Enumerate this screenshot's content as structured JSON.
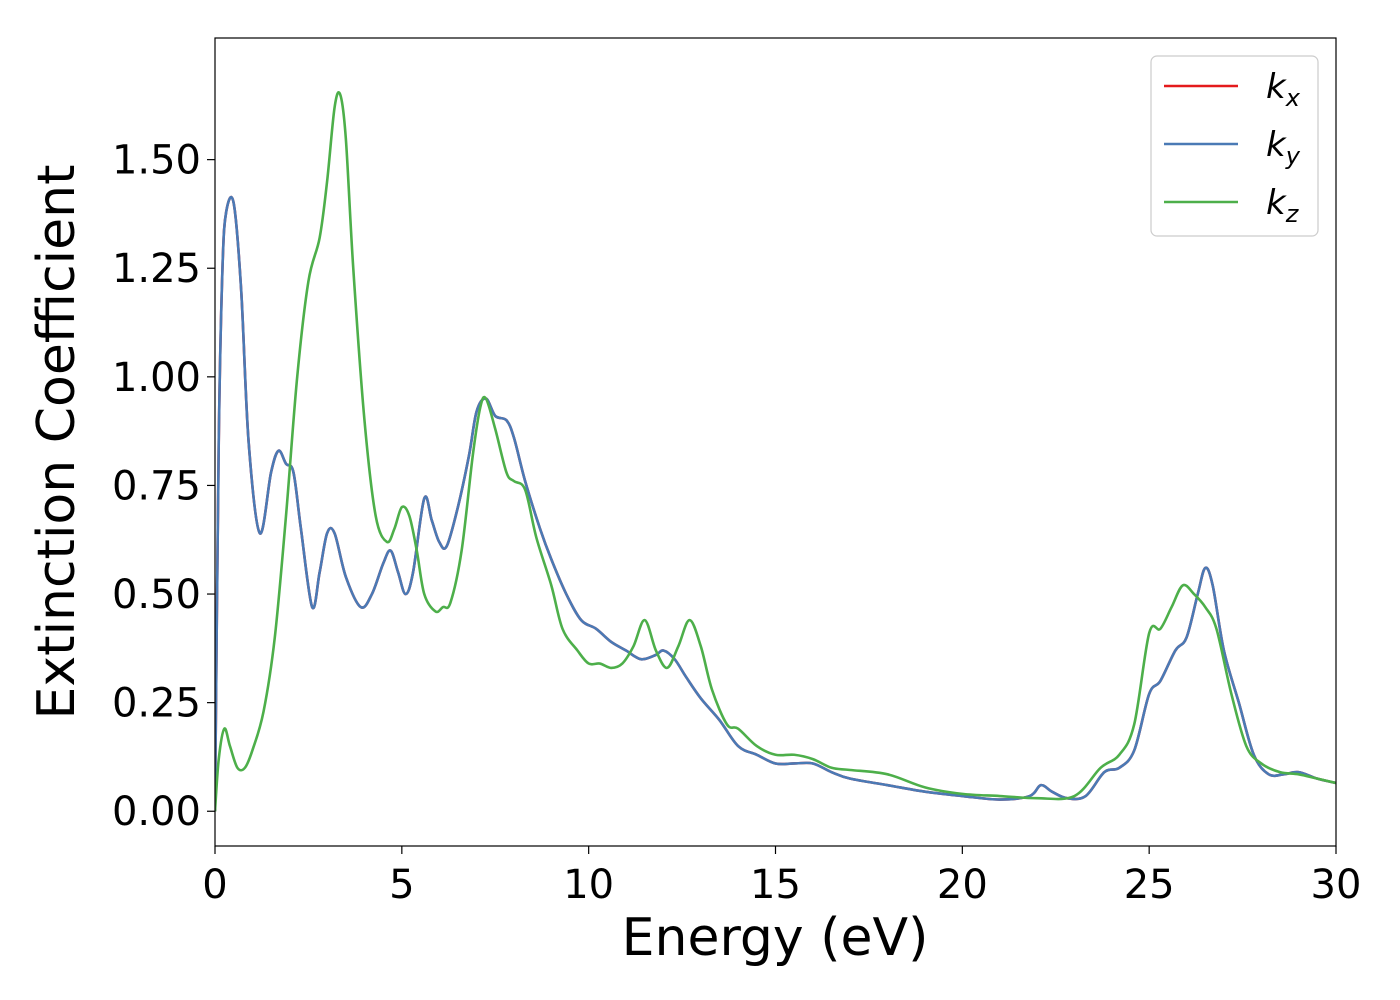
{
  "chart_data": {
    "type": "line",
    "xlabel": "Energy (eV)",
    "ylabel": "Extinction Coefficient",
    "xlim": [
      0,
      30
    ],
    "ylim": [
      -0.08,
      1.78
    ],
    "xticks": [
      0,
      5,
      10,
      15,
      20,
      25,
      30
    ],
    "xtick_labels": [
      "0",
      "5",
      "10",
      "15",
      "20",
      "25",
      "30"
    ],
    "yticks": [
      0.0,
      0.25,
      0.5,
      0.75,
      1.0,
      1.25,
      1.5
    ],
    "ytick_labels": [
      "0.00",
      "0.25",
      "0.50",
      "0.75",
      "1.00",
      "1.25",
      "1.50"
    ],
    "grid": false,
    "legend_position": "top-right",
    "series": [
      {
        "name": "k_x",
        "label_main": "k",
        "label_sub": "x",
        "color": "#e41a1c",
        "x": [
          0,
          0.1,
          0.2,
          0.3,
          0.5,
          0.7,
          0.9,
          1.2,
          1.5,
          1.7,
          1.9,
          2.1,
          2.3,
          2.6,
          2.8,
          3.0,
          3.2,
          3.5,
          3.9,
          4.2,
          4.5,
          4.7,
          4.9,
          5.1,
          5.3,
          5.6,
          5.8,
          6.0,
          6.2,
          6.5,
          6.8,
          7.0,
          7.25,
          7.5,
          7.8,
          8.0,
          8.3,
          8.7,
          9.0,
          9.4,
          9.8,
          10.2,
          10.6,
          11.0,
          11.4,
          11.8,
          12.0,
          12.3,
          12.6,
          13.0,
          13.5,
          14.0,
          14.5,
          15.0,
          15.5,
          16.0,
          16.5,
          17.0,
          18.0,
          19.0,
          20.0,
          21.0,
          21.8,
          22.1,
          22.4,
          22.8,
          23.3,
          23.8,
          24.2,
          24.6,
          25.0,
          25.3,
          25.7,
          26.0,
          26.3,
          26.5,
          26.7,
          27.0,
          27.4,
          27.8,
          28.2,
          28.6,
          29.0,
          29.5,
          30.0
        ],
        "y": [
          0.0,
          0.85,
          1.25,
          1.38,
          1.4,
          1.2,
          0.85,
          0.64,
          0.78,
          0.83,
          0.8,
          0.78,
          0.65,
          0.47,
          0.55,
          0.64,
          0.64,
          0.54,
          0.47,
          0.5,
          0.57,
          0.6,
          0.55,
          0.5,
          0.55,
          0.72,
          0.67,
          0.62,
          0.61,
          0.7,
          0.82,
          0.92,
          0.95,
          0.91,
          0.9,
          0.86,
          0.76,
          0.65,
          0.58,
          0.5,
          0.44,
          0.42,
          0.39,
          0.37,
          0.35,
          0.36,
          0.37,
          0.35,
          0.31,
          0.26,
          0.21,
          0.15,
          0.13,
          0.11,
          0.11,
          0.11,
          0.09,
          0.075,
          0.06,
          0.045,
          0.035,
          0.027,
          0.035,
          0.06,
          0.045,
          0.03,
          0.035,
          0.09,
          0.1,
          0.14,
          0.27,
          0.3,
          0.37,
          0.4,
          0.5,
          0.56,
          0.52,
          0.37,
          0.25,
          0.13,
          0.085,
          0.085,
          0.09,
          0.075,
          0.065
        ]
      },
      {
        "name": "k_y",
        "label_main": "k",
        "label_sub": "y",
        "color": "#4a7ab5",
        "x": [
          0,
          0.1,
          0.2,
          0.3,
          0.5,
          0.7,
          0.9,
          1.2,
          1.5,
          1.7,
          1.9,
          2.1,
          2.3,
          2.6,
          2.8,
          3.0,
          3.2,
          3.5,
          3.9,
          4.2,
          4.5,
          4.7,
          4.9,
          5.1,
          5.3,
          5.6,
          5.8,
          6.0,
          6.2,
          6.5,
          6.8,
          7.0,
          7.25,
          7.5,
          7.8,
          8.0,
          8.3,
          8.7,
          9.0,
          9.4,
          9.8,
          10.2,
          10.6,
          11.0,
          11.4,
          11.8,
          12.0,
          12.3,
          12.6,
          13.0,
          13.5,
          14.0,
          14.5,
          15.0,
          15.5,
          16.0,
          16.5,
          17.0,
          18.0,
          19.0,
          20.0,
          21.0,
          21.8,
          22.1,
          22.4,
          22.8,
          23.3,
          23.8,
          24.2,
          24.6,
          25.0,
          25.3,
          25.7,
          26.0,
          26.3,
          26.5,
          26.7,
          27.0,
          27.4,
          27.8,
          28.2,
          28.6,
          29.0,
          29.5,
          30.0
        ],
        "y": [
          0.0,
          0.85,
          1.25,
          1.38,
          1.4,
          1.2,
          0.85,
          0.64,
          0.78,
          0.83,
          0.8,
          0.78,
          0.65,
          0.47,
          0.55,
          0.64,
          0.64,
          0.54,
          0.47,
          0.5,
          0.57,
          0.6,
          0.55,
          0.5,
          0.55,
          0.72,
          0.67,
          0.62,
          0.61,
          0.7,
          0.82,
          0.92,
          0.95,
          0.91,
          0.9,
          0.86,
          0.76,
          0.65,
          0.58,
          0.5,
          0.44,
          0.42,
          0.39,
          0.37,
          0.35,
          0.36,
          0.37,
          0.35,
          0.31,
          0.26,
          0.21,
          0.15,
          0.13,
          0.11,
          0.11,
          0.11,
          0.09,
          0.075,
          0.06,
          0.045,
          0.035,
          0.027,
          0.035,
          0.06,
          0.045,
          0.03,
          0.035,
          0.09,
          0.1,
          0.14,
          0.27,
          0.3,
          0.37,
          0.4,
          0.5,
          0.56,
          0.52,
          0.37,
          0.25,
          0.13,
          0.085,
          0.085,
          0.09,
          0.075,
          0.065
        ]
      },
      {
        "name": "k_z",
        "label_main": "k",
        "label_sub": "z",
        "color": "#4daf4a",
        "x": [
          0,
          0.1,
          0.25,
          0.4,
          0.6,
          0.8,
          1.0,
          1.3,
          1.6,
          1.9,
          2.2,
          2.5,
          2.8,
          3.0,
          3.2,
          3.35,
          3.5,
          3.7,
          4.0,
          4.3,
          4.6,
          4.8,
          5.0,
          5.2,
          5.4,
          5.6,
          5.9,
          6.1,
          6.3,
          6.6,
          6.9,
          7.1,
          7.25,
          7.5,
          7.8,
          8.0,
          8.3,
          8.6,
          9.0,
          9.3,
          9.7,
          10.0,
          10.3,
          10.6,
          10.9,
          11.2,
          11.5,
          11.8,
          12.1,
          12.4,
          12.7,
          13.0,
          13.3,
          13.7,
          14.0,
          14.5,
          15.0,
          15.5,
          16.0,
          16.5,
          17.0,
          18.0,
          19.0,
          20.0,
          21.0,
          22.0,
          23.0,
          23.7,
          24.2,
          24.6,
          25.0,
          25.3,
          25.6,
          25.9,
          26.2,
          26.5,
          26.8,
          27.2,
          27.6,
          28.0,
          28.5,
          29.0,
          29.5,
          30.0
        ],
        "y": [
          0.0,
          0.12,
          0.19,
          0.15,
          0.1,
          0.1,
          0.14,
          0.23,
          0.4,
          0.68,
          1.0,
          1.22,
          1.32,
          1.45,
          1.62,
          1.65,
          1.55,
          1.25,
          0.9,
          0.68,
          0.62,
          0.65,
          0.7,
          0.68,
          0.6,
          0.5,
          0.46,
          0.47,
          0.48,
          0.6,
          0.82,
          0.93,
          0.95,
          0.88,
          0.78,
          0.76,
          0.74,
          0.63,
          0.52,
          0.42,
          0.37,
          0.34,
          0.34,
          0.33,
          0.34,
          0.38,
          0.44,
          0.37,
          0.33,
          0.38,
          0.44,
          0.38,
          0.28,
          0.2,
          0.19,
          0.15,
          0.13,
          0.13,
          0.12,
          0.1,
          0.095,
          0.085,
          0.055,
          0.04,
          0.035,
          0.03,
          0.035,
          0.1,
          0.13,
          0.2,
          0.41,
          0.42,
          0.47,
          0.52,
          0.5,
          0.47,
          0.42,
          0.27,
          0.15,
          0.11,
          0.09,
          0.085,
          0.075,
          0.065
        ]
      }
    ]
  }
}
